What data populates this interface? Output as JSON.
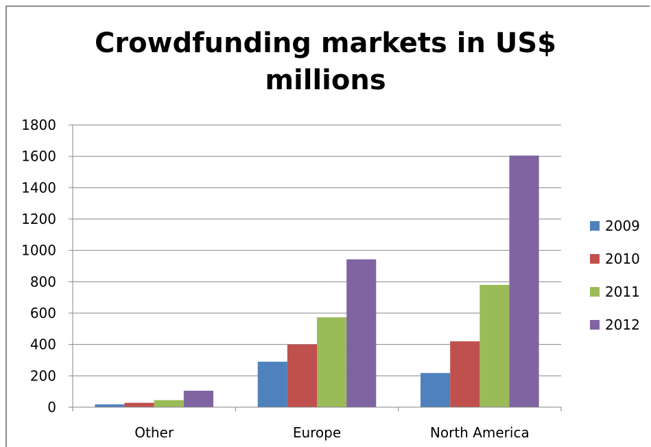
{
  "chart_data": {
    "type": "bar",
    "title_lines": [
      "Crowdfunding markets in US$",
      "millions"
    ],
    "categories": [
      "Other",
      "Europe",
      "North America"
    ],
    "series": [
      {
        "name": "2009",
        "color": "#4f81bd",
        "values": [
          18,
          290,
          218
        ]
      },
      {
        "name": "2010",
        "color": "#c0504d",
        "values": [
          28,
          400,
          420
        ]
      },
      {
        "name": "2011",
        "color": "#9bbb59",
        "values": [
          45,
          573,
          780
        ]
      },
      {
        "name": "2012",
        "color": "#8064a2",
        "values": [
          105,
          943,
          1605
        ]
      }
    ],
    "ylim": [
      0,
      1800
    ],
    "yticks": [
      "0",
      "200",
      "400",
      "600",
      "800",
      "1000",
      "1200",
      "1400",
      "1600",
      "1800"
    ],
    "grid": true,
    "legend_position": "right"
  }
}
